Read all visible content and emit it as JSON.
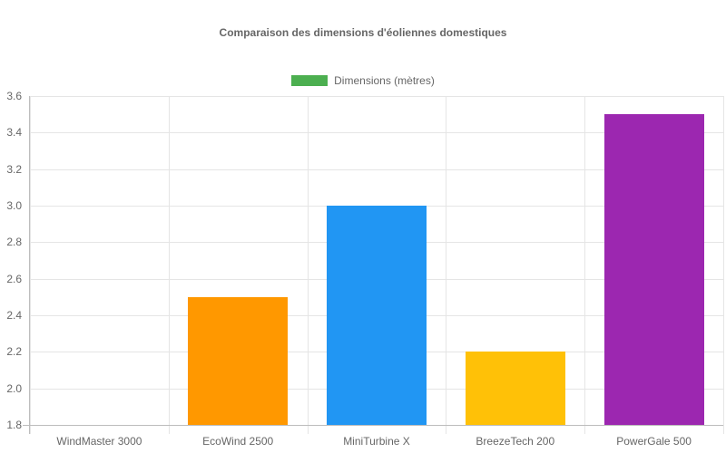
{
  "chart_data": {
    "type": "bar",
    "title": "Comparaison des dimensions d'éoliennes domestiques",
    "xlabel": "",
    "ylabel": "",
    "categories": [
      "WindMaster 3000",
      "EcoWind 2500",
      "MiniTurbine X",
      "BreezeTech 200",
      "PowerGale 500"
    ],
    "series": [
      {
        "name": "Dimensions (mètres)",
        "values": [
          1.8,
          2.5,
          3.0,
          2.2,
          3.5
        ],
        "colors": [
          "#4caf50",
          "#ff9800",
          "#2196f3",
          "#ffc107",
          "#9c27b0"
        ]
      }
    ],
    "ylim": [
      1.8,
      3.6
    ],
    "yticks": [
      "3.6",
      "3.4",
      "3.2",
      "3.0",
      "2.8",
      "2.6",
      "2.4",
      "2.2",
      "2.0",
      "1.8"
    ],
    "grid": true,
    "legend": {
      "position": "top",
      "label": "Dimensions (mètres)",
      "color": "#4caf50"
    }
  }
}
